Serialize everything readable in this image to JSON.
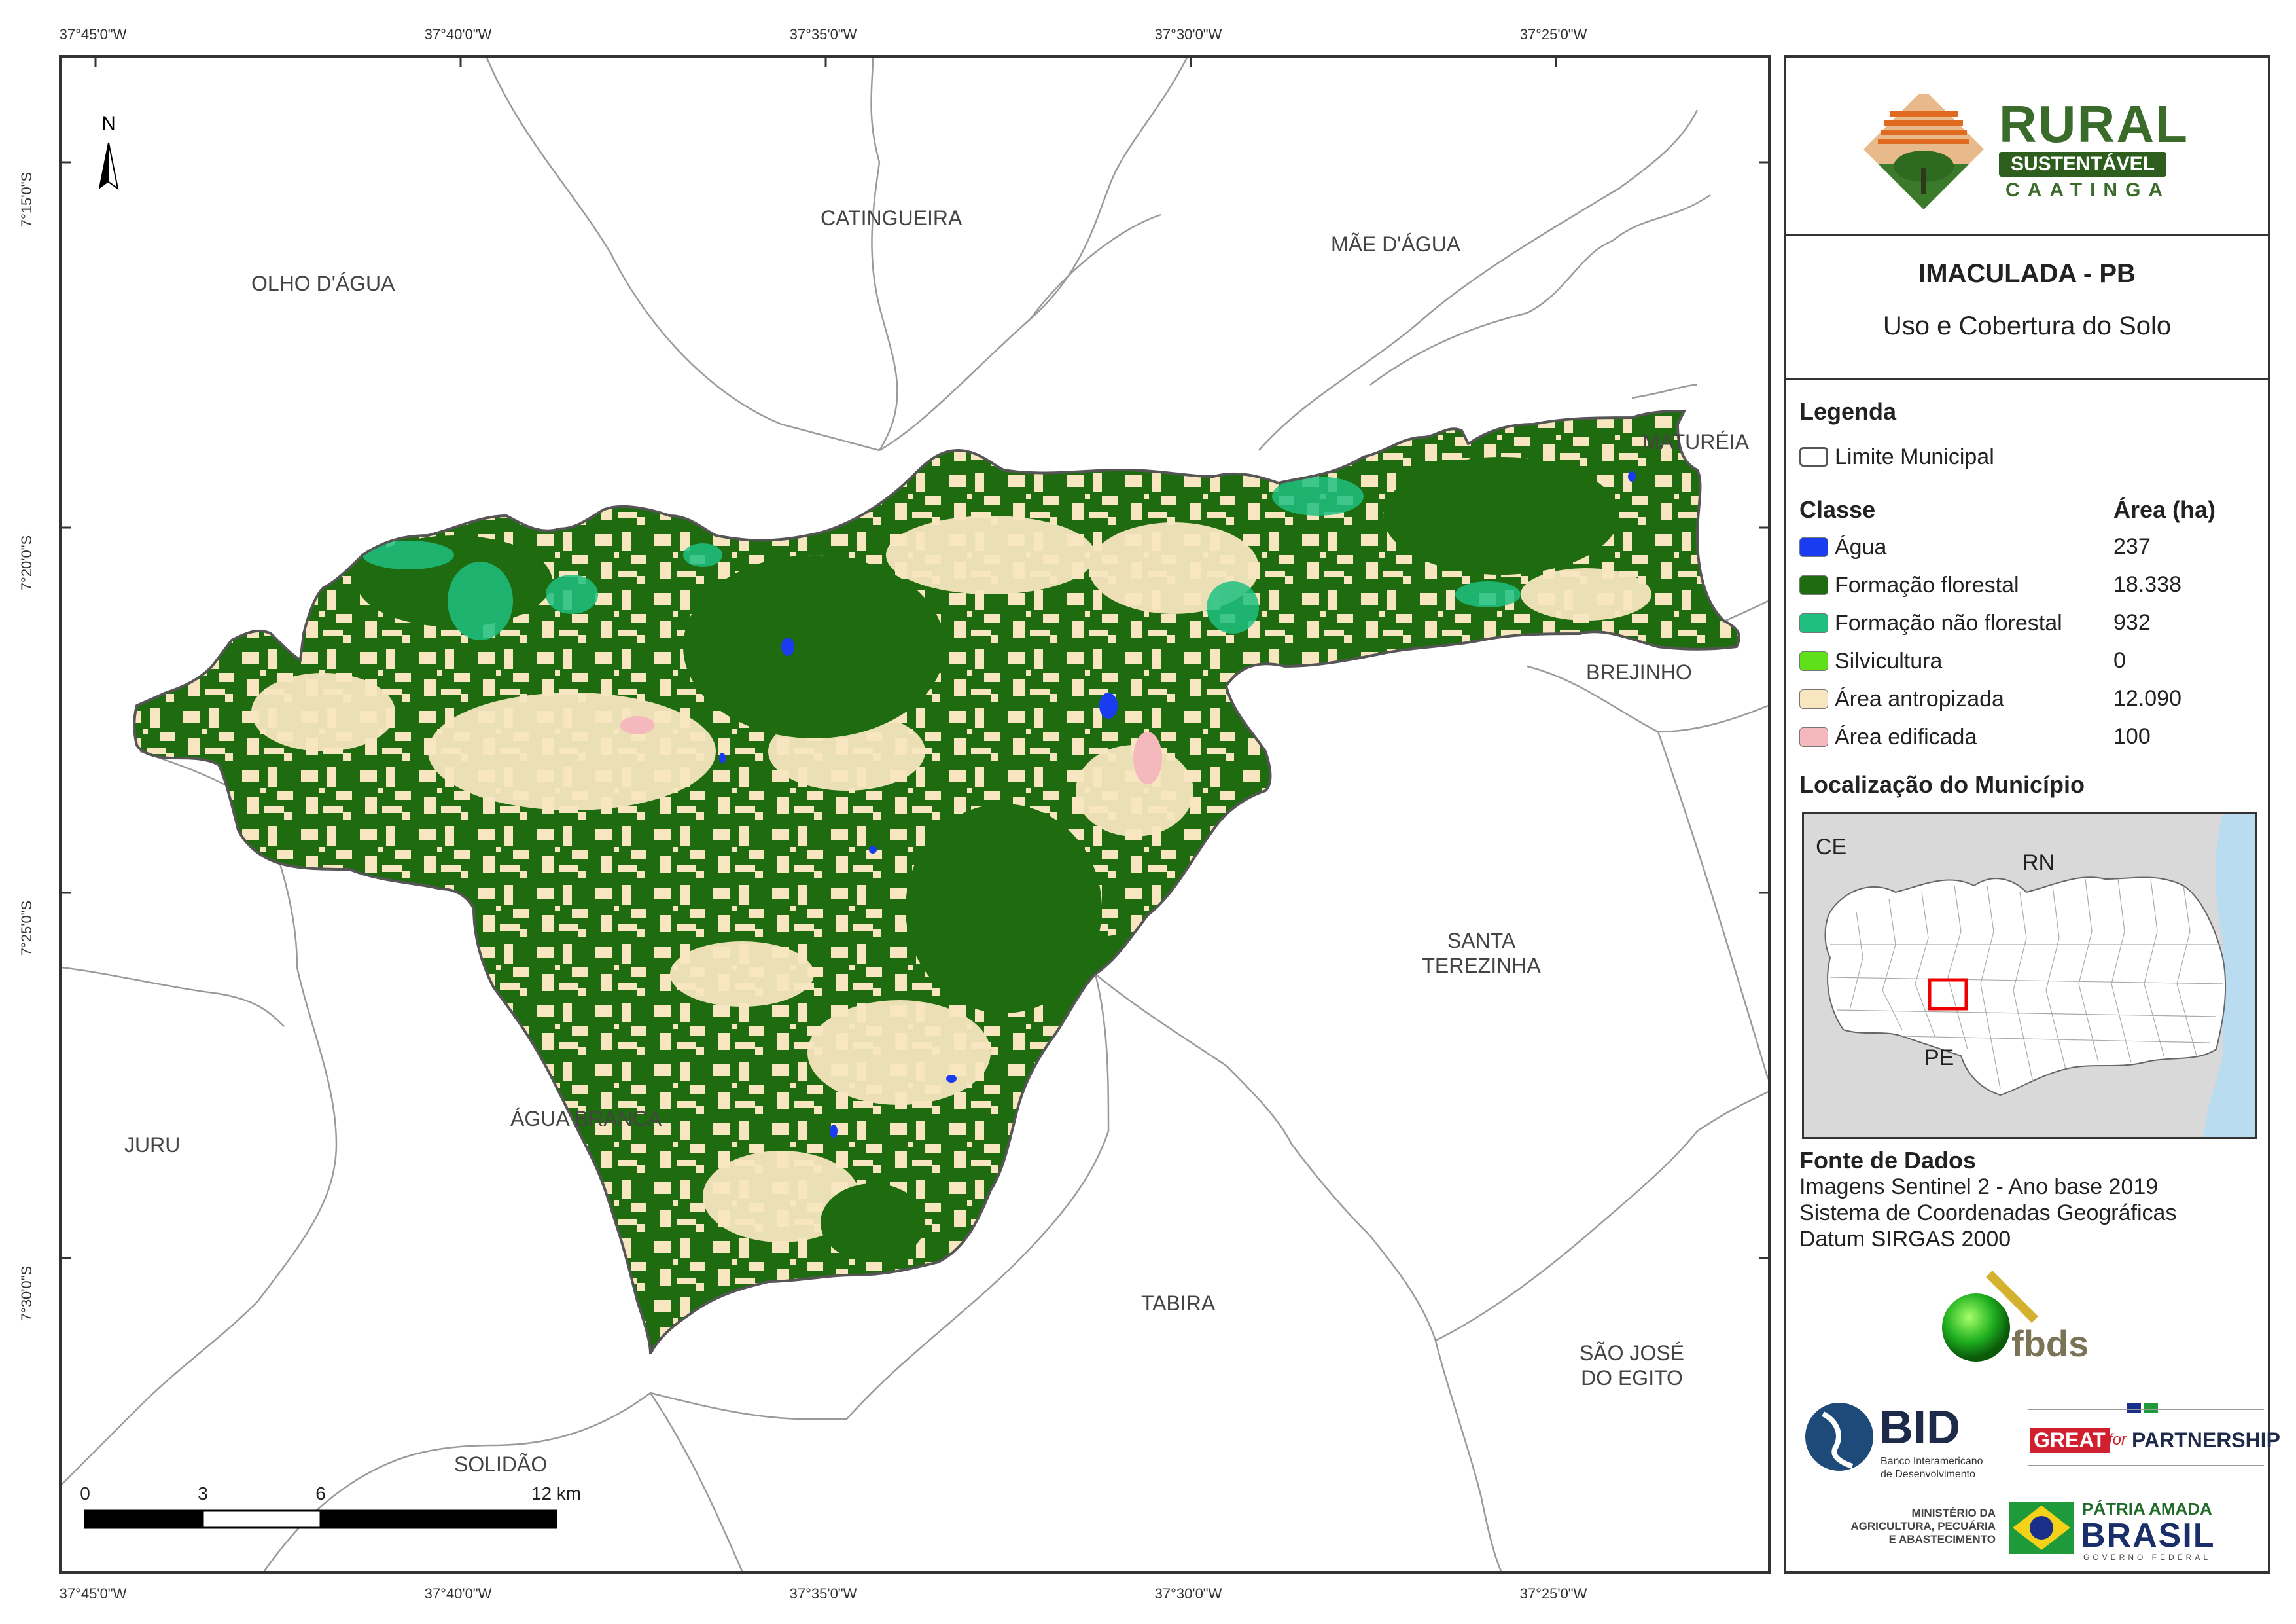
{
  "ticks": {
    "top": [
      "37°45'0\"W",
      "37°40'0\"W",
      "37°35'0\"W",
      "37°30'0\"W",
      "37°25'0\"W"
    ],
    "bottom": [
      "37°45'0\"W",
      "37°40'0\"W",
      "37°35'0\"W",
      "37°30'0\"W",
      "37°25'0\"W"
    ],
    "left": [
      "7°15'0\"S",
      "7°20'0\"S",
      "7°25'0\"S",
      "7°30'0\"S"
    ]
  },
  "map": {
    "north_label": "N",
    "municipalities": {
      "catingueira": "CATINGUEIRA",
      "olho_dagua": "OLHO D'ÁGUA",
      "mae_dagua": "MÃE D'ÁGUA",
      "matureia": "MATURÉIA",
      "brejinho": "BREJINHO",
      "santa_terezinha_1": "SANTA",
      "santa_terezinha_2": "TEREZINHA",
      "juru": "JURU",
      "agua_branca": "ÁGUA BRANCA",
      "tabira": "TABIRA",
      "sao_jose_1": "SÃO JOSÉ",
      "sao_jose_2": "DO EGITO",
      "solidao": "SOLIDÃO"
    },
    "scale": {
      "labels": [
        "0",
        "3",
        "6",
        "12 km"
      ],
      "km_marks": [
        0,
        3,
        6,
        12
      ]
    }
  },
  "panel": {
    "logo": {
      "word1": "RURAL",
      "word2": "SUSTENTÁVEL",
      "word3": "CAATINGA"
    },
    "title": "IMACULADA - PB",
    "subtitle": "Uso e Cobertura do Solo",
    "legend_heading": "Legenda",
    "boundary_label": "Limite Municipal",
    "class_heading": "Classe",
    "area_heading": "Área (ha)",
    "classes": [
      {
        "label": "Água",
        "area": "237",
        "color": "#1a3cf0"
      },
      {
        "label": "Formação florestal",
        "area": "18.338",
        "color": "#1f6b0f"
      },
      {
        "label": "Formação não florestal",
        "area": "932",
        "color": "#1fbf80"
      },
      {
        "label": "Silvicultura",
        "area": "0",
        "color": "#5fe01a"
      },
      {
        "label": "Área antropizada",
        "area": "12.090",
        "color": "#f7e6bf"
      },
      {
        "label": "Área edificada",
        "area": "100",
        "color": "#f5b8bd"
      }
    ],
    "location_heading": "Localização do Município",
    "inset": {
      "ce": "CE",
      "rn": "RN",
      "pe": "PE"
    },
    "source_heading": "Fonte de Dados",
    "source_lines": [
      "Imagens Sentinel 2 - Ano base 2019",
      "Sistema de Coordenadas Geográficas",
      "Datum SIRGAS 2000"
    ],
    "logos": {
      "fbds": "fbds",
      "bid": "BID",
      "bid_sub1": "Banco Interamericano",
      "bid_sub2": "de Desenvolvimento",
      "great": "GREAT",
      "for": "for",
      "partnership": "PARTNERSHIP",
      "ministerio1": "MINISTÉRIO DA",
      "ministerio2": "AGRICULTURA, PECUÁRIA",
      "ministerio3": "E ABASTECIMENTO",
      "patria": "PÁTRIA AMADA",
      "brasil": "BRASIL",
      "governo": "GOVERNO FEDERAL"
    }
  }
}
